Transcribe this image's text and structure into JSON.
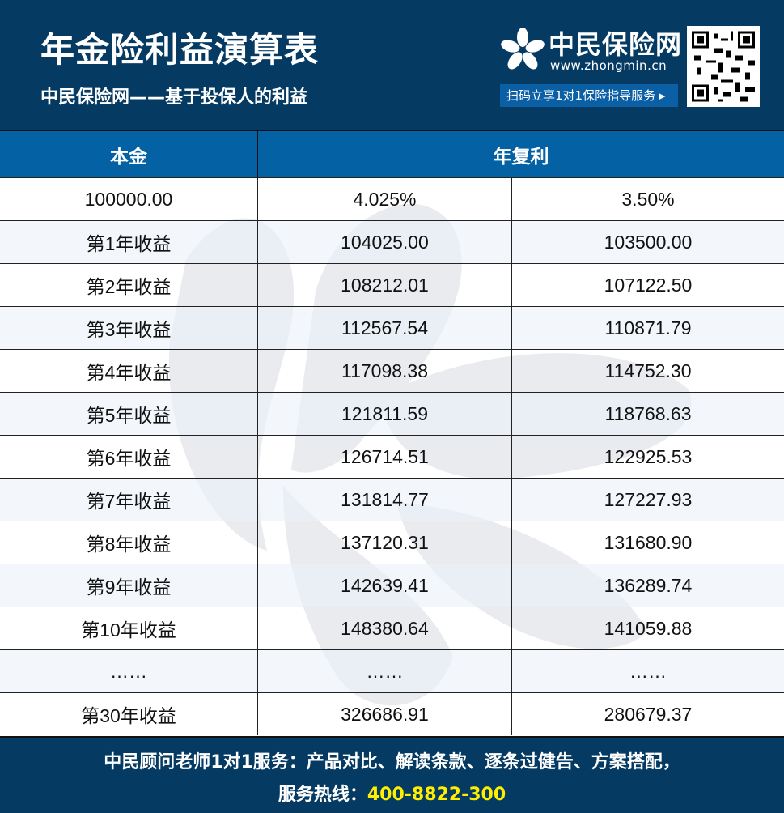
{
  "header": {
    "title": "年金险利益演算表",
    "subtitle": "中民保险网——基于投保人的利益",
    "logo_name": "中民保险网",
    "logo_url": "www.zhongmin.cn",
    "scan_label": "扫码立享1对1保险指导服务 ▸",
    "logo_icon": "flower-logo-icon",
    "qr_icon": "qr-code-icon"
  },
  "table": {
    "headers": [
      "本金",
      "年复利"
    ],
    "rows": [
      [
        "100000.00",
        "4.025%",
        "3.50%"
      ],
      [
        "第1年收益",
        "104025.00",
        "103500.00"
      ],
      [
        "第2年收益",
        "108212.01",
        "107122.50"
      ],
      [
        "第3年收益",
        "112567.54",
        "110871.79"
      ],
      [
        "第4年收益",
        "117098.38",
        "114752.30"
      ],
      [
        "第5年收益",
        "121811.59",
        "118768.63"
      ],
      [
        "第6年收益",
        "126714.51",
        "122925.53"
      ],
      [
        "第7年收益",
        "131814.77",
        "127227.93"
      ],
      [
        "第8年收益",
        "137120.31",
        "131680.90"
      ],
      [
        "第9年收益",
        "142639.41",
        "136289.74"
      ],
      [
        "第10年收益",
        "148380.64",
        "141059.88"
      ],
      [
        "……",
        "……",
        "……"
      ],
      [
        "第30年收益",
        "326686.91",
        "280679.37"
      ]
    ]
  },
  "footer": {
    "line1": "中民顾问老师1对1服务：产品对比、解读条款、逐条过健告、方案搭配，",
    "hotline_label": "服务热线：",
    "hotline": "400-8822-300"
  },
  "colors": {
    "top_band": "#053a63",
    "table_header": "#0361a4",
    "hotline": "#ffee00"
  }
}
